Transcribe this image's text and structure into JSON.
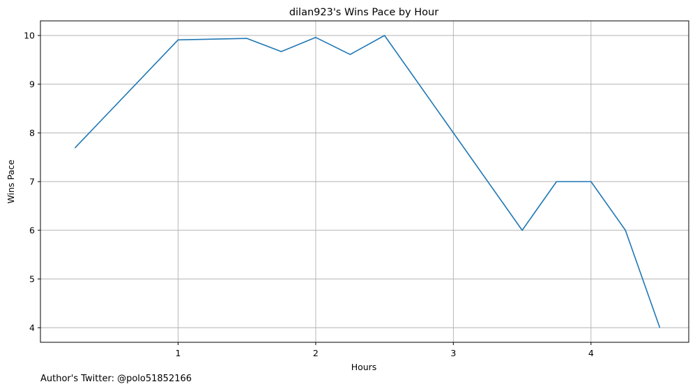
{
  "chart_data": {
    "type": "line",
    "title": "dilan923's Wins Pace by Hour",
    "xlabel": "Hours",
    "ylabel": "Wins Pace",
    "xlim": [
      0.0,
      4.71
    ],
    "ylim": [
      3.7,
      10.3
    ],
    "xticks": [
      1,
      2,
      3,
      4
    ],
    "yticks": [
      4,
      5,
      6,
      7,
      8,
      9,
      10
    ],
    "grid": true,
    "series": [
      {
        "color": "#1f77b4",
        "x": [
          0.25,
          1.0,
          1.5,
          1.75,
          2.0,
          2.25,
          2.5,
          3.0,
          3.5,
          3.75,
          4.0,
          4.25,
          4.5
        ],
        "y": [
          7.69,
          9.91,
          9.94,
          9.67,
          9.96,
          9.61,
          10.0,
          8.0,
          6.0,
          7.0,
          7.0,
          6.0,
          4.0
        ]
      }
    ]
  },
  "footer": "Author's Twitter: @polo51852166"
}
